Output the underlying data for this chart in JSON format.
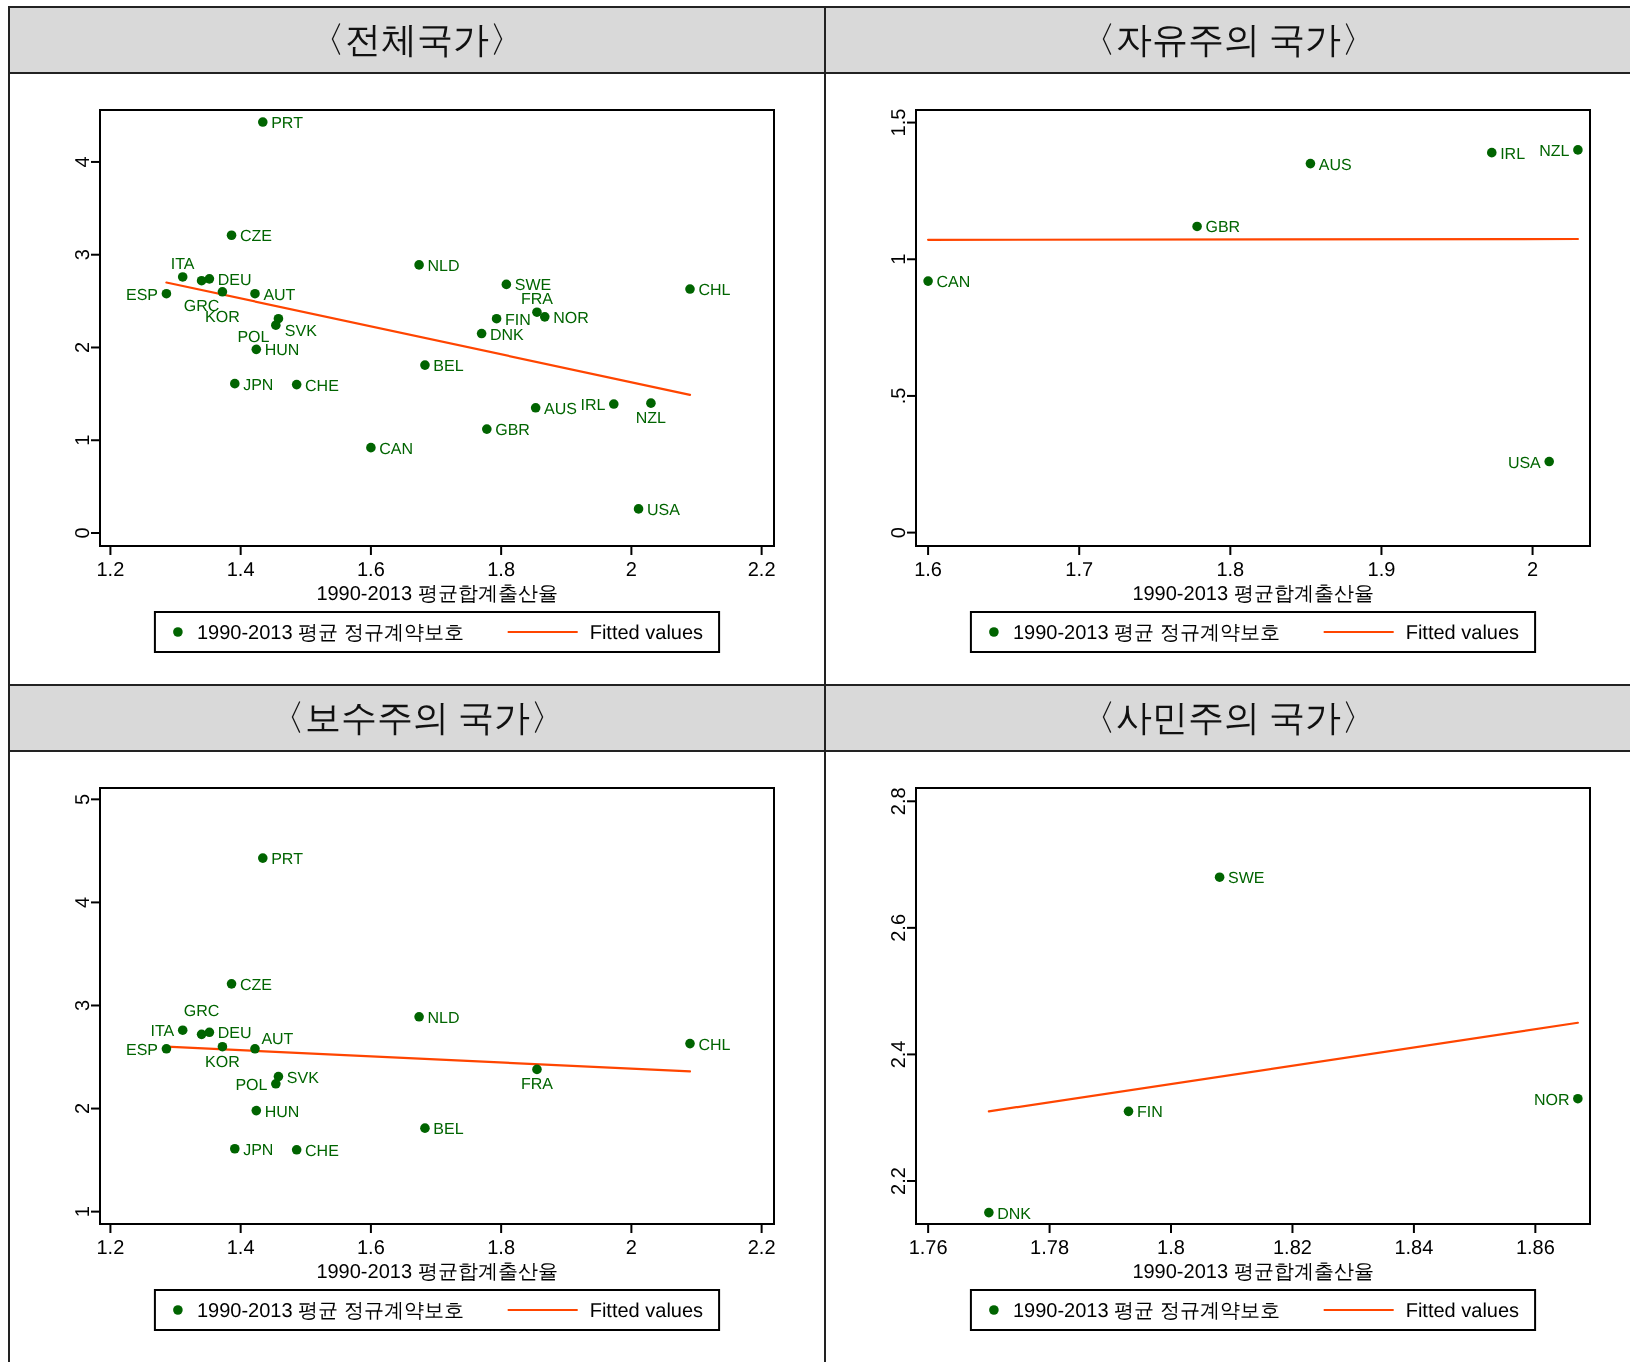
{
  "chart_data": [
    {
      "type": "scatter",
      "title": "〈전체국가〉",
      "xlabel": "1990-2013 평균합계출산율",
      "xlim": [
        1.184,
        2.219
      ],
      "xticks": [
        1.2,
        1.4,
        1.6,
        1.8,
        2,
        2.2
      ],
      "ylim": [
        -0.14,
        4.56
      ],
      "yticks": [
        0,
        1,
        2,
        3,
        4
      ],
      "legend": "bottom",
      "series": [
        {
          "name": "1990-2013 평균 정규계약보호",
          "type": "scatter",
          "marker": "circle",
          "color": "#006400",
          "x": [
            1.434,
            1.386,
            1.311,
            1.34,
            1.352,
            1.286,
            1.372,
            1.422,
            1.458,
            1.454,
            1.424,
            1.391,
            1.486,
            1.674,
            1.683,
            1.855,
            2.09,
            1.808,
            1.793,
            1.867,
            1.77,
            1.853,
            1.973,
            2.03,
            1.778,
            1.6,
            2.011
          ],
          "values": [
            4.43,
            3.21,
            2.76,
            2.72,
            2.74,
            2.58,
            2.6,
            2.58,
            2.31,
            2.24,
            1.98,
            1.61,
            1.6,
            2.89,
            1.81,
            2.38,
            2.63,
            2.68,
            2.31,
            2.33,
            2.15,
            1.35,
            1.39,
            1.4,
            1.12,
            0.92,
            0.26
          ],
          "value_labels": [
            "PRT",
            "CZE",
            "ITA",
            "GRC",
            "DEU",
            "ESP",
            "KOR",
            "AUT",
            "SVK",
            "POL",
            "HUN",
            "JPN",
            "CHE",
            "NLD",
            "BEL",
            "FRA",
            "CHL",
            "SWE",
            "FIN",
            "NOR",
            "DNK",
            "AUS",
            "IRL",
            "NZL",
            "GBR",
            "CAN",
            "USA"
          ]
        },
        {
          "name": "Fitted values",
          "type": "line",
          "line_style": "solid",
          "color": "#ff4500",
          "x": [
            1.286,
            2.09
          ],
          "values": [
            2.7,
            1.49
          ]
        }
      ]
    },
    {
      "type": "scatter",
      "title": "〈자유주의 국가〉",
      "xlabel": "1990-2013 평균합계출산율",
      "xlim": [
        1.592,
        2.038
      ],
      "xticks": [
        1.6,
        1.7,
        1.8,
        1.9,
        2
      ],
      "ylim": [
        -0.049,
        1.546
      ],
      "yticks": [
        0,
        {
          "value": 0.5,
          "label": ".5"
        },
        1,
        1.5
      ],
      "legend": "bottom",
      "series": [
        {
          "name": "1990-2013 평균 정규계약보호",
          "type": "scatter",
          "marker": "circle",
          "color": "#006400",
          "x": [
            1.853,
            1.973,
            2.03,
            1.778,
            1.6,
            2.011
          ],
          "values": [
            1.35,
            1.39,
            1.4,
            1.12,
            0.92,
            0.26
          ],
          "value_labels": [
            "AUS",
            "IRL",
            "NZL",
            "GBR",
            "CAN",
            "USA"
          ]
        },
        {
          "name": "Fitted values",
          "type": "line",
          "line_style": "solid",
          "color": "#ff4500",
          "x": [
            1.6,
            2.03
          ],
          "values": [
            1.071,
            1.074
          ]
        }
      ]
    },
    {
      "type": "scatter",
      "title": "〈보수주의 국가〉",
      "xlabel": "1990-2013 평균합계출산율",
      "xlim": [
        1.184,
        2.219
      ],
      "xticks": [
        1.2,
        1.4,
        1.6,
        1.8,
        2,
        2.2
      ],
      "ylim": [
        0.88,
        5.11
      ],
      "yticks": [
        1,
        2,
        3,
        4,
        5
      ],
      "legend": "bottom",
      "series": [
        {
          "name": "1990-2013 평균 정규계약보호",
          "type": "scatter",
          "marker": "circle",
          "color": "#006400",
          "x": [
            1.434,
            1.386,
            1.311,
            1.34,
            1.352,
            1.286,
            1.372,
            1.422,
            1.458,
            1.454,
            1.424,
            1.391,
            1.486,
            1.674,
            1.683,
            1.855,
            2.09
          ],
          "values": [
            4.43,
            3.21,
            2.76,
            2.72,
            2.74,
            2.58,
            2.6,
            2.58,
            2.31,
            2.24,
            1.98,
            1.61,
            1.6,
            2.89,
            1.81,
            2.38,
            2.63
          ],
          "value_labels": [
            "PRT",
            "CZE",
            "ITA",
            "GRC",
            "DEU",
            "ESP",
            "KOR",
            "AUT",
            "SVK",
            "POL",
            "HUN",
            "JPN",
            "CHE",
            "NLD",
            "BEL",
            "FRA",
            "CHL"
          ]
        },
        {
          "name": "Fitted values",
          "type": "line",
          "line_style": "solid",
          "color": "#ff4500",
          "x": [
            1.286,
            2.09
          ],
          "values": [
            2.6,
            2.36
          ]
        }
      ]
    },
    {
      "type": "scatter",
      "title": "〈사민주의 국가〉",
      "xlabel": "1990-2013 평균합계출산율",
      "xlim": [
        1.758,
        1.869
      ],
      "xticks": [
        1.76,
        1.78,
        1.8,
        1.82,
        1.84,
        1.86
      ],
      "ylim": [
        2.132,
        2.821
      ],
      "yticks": [
        2.2,
        2.4,
        2.6,
        2.8
      ],
      "legend": "bottom",
      "series": [
        {
          "name": "1990-2013 평균 정규계약보호",
          "type": "scatter",
          "marker": "circle",
          "color": "#006400",
          "x": [
            1.808,
            1.793,
            1.867,
            1.77
          ],
          "values": [
            2.68,
            2.31,
            2.33,
            2.15
          ],
          "value_labels": [
            "SWE",
            "FIN",
            "NOR",
            "DNK"
          ]
        },
        {
          "name": "Fitted values",
          "type": "line",
          "line_style": "solid",
          "color": "#ff4500",
          "x": [
            1.77,
            1.867
          ],
          "values": [
            2.31,
            2.45
          ]
        }
      ]
    }
  ]
}
